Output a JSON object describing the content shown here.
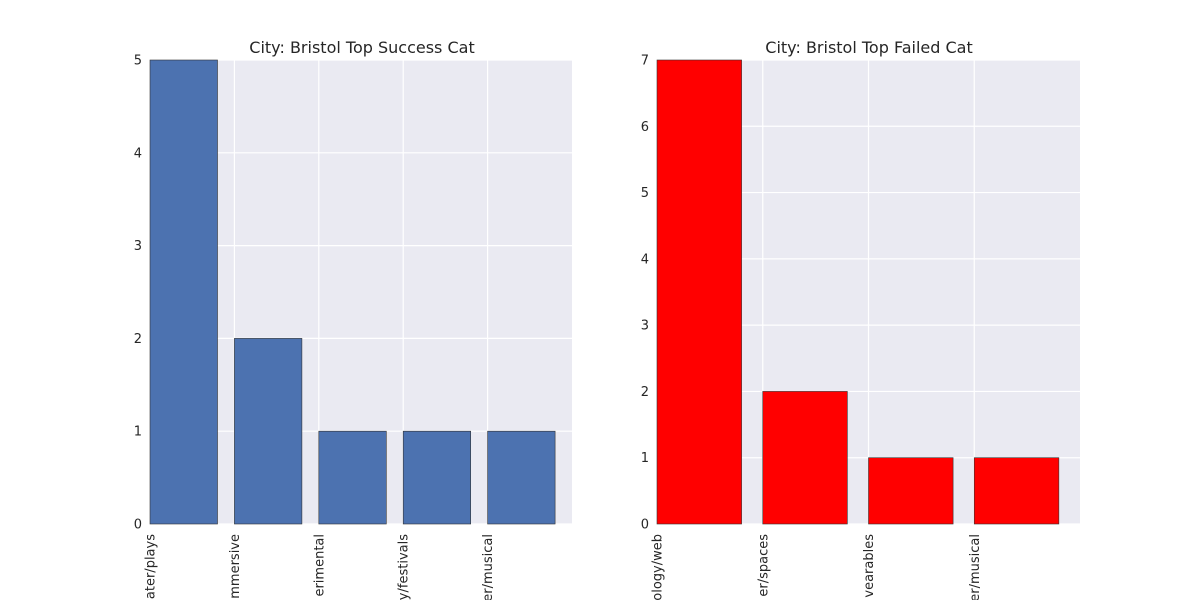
{
  "chart_data": [
    {
      "type": "bar",
      "title": "City: Bristol Top Success Cat",
      "categories": [
        "theater/plays",
        "theater/immersive",
        "theater/experimental",
        "theater/festivals",
        "theater/musical"
      ],
      "categories_visible": [
        "ater/plays",
        "mmersive",
        "erimental",
        "y/festivals",
        "er/musical"
      ],
      "values": [
        5,
        2,
        1,
        1,
        1
      ],
      "ylim": [
        0,
        5
      ],
      "yticks": [
        "0",
        "1",
        "2",
        "3",
        "4",
        "5"
      ],
      "color": "#4c72b0",
      "grid": true
    },
    {
      "type": "bar",
      "title": "City: Bristol Top Failed Cat",
      "categories": [
        "technology/web",
        "technology/spaces",
        "technology/wearables",
        "theater/musical"
      ],
      "categories_visible": [
        "ology/web",
        "er/spaces",
        "vearables",
        "er/musical"
      ],
      "values": [
        7,
        2,
        1,
        1
      ],
      "ylim": [
        0,
        7
      ],
      "yticks": [
        "0",
        "1",
        "2",
        "3",
        "4",
        "5",
        "6",
        "7"
      ],
      "color": "#ff0000",
      "grid": true
    }
  ]
}
